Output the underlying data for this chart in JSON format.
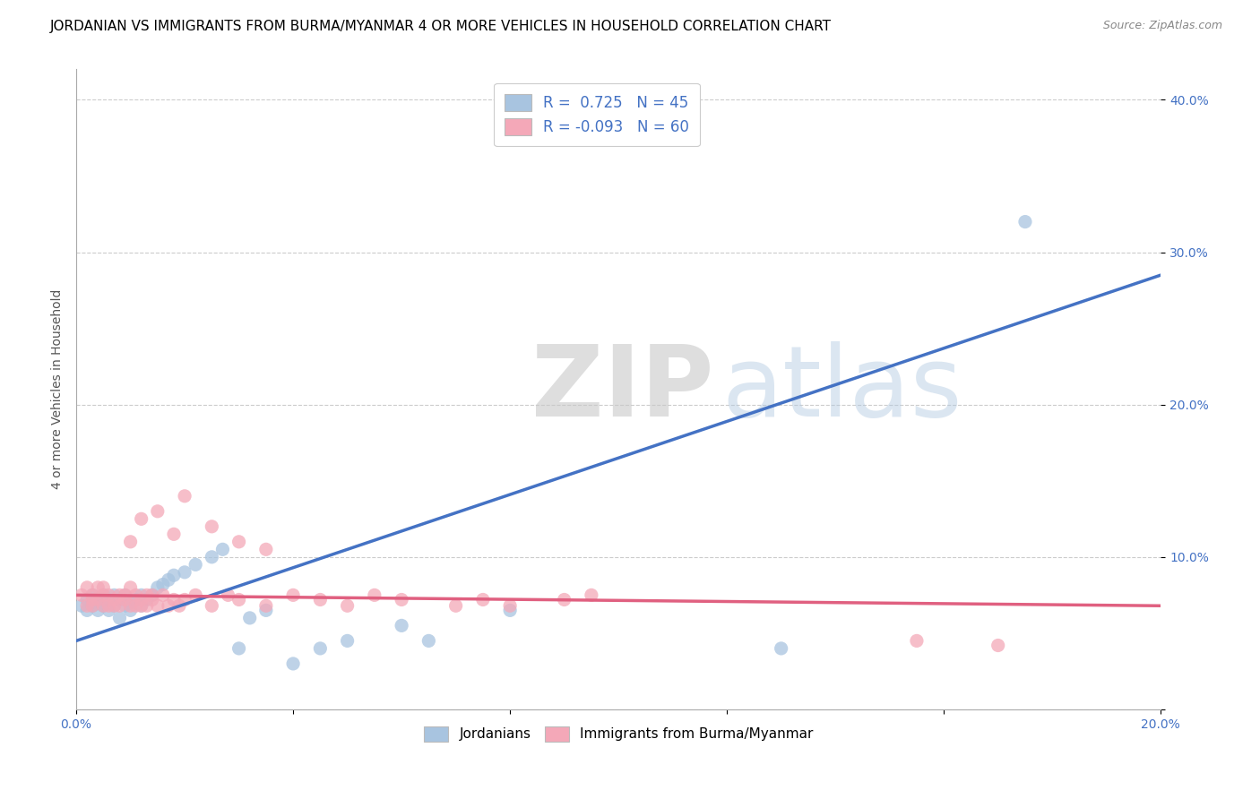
{
  "title": "JORDANIAN VS IMMIGRANTS FROM BURMA/MYANMAR 4 OR MORE VEHICLES IN HOUSEHOLD CORRELATION CHART",
  "source": "Source: ZipAtlas.com",
  "ylabel": "4 or more Vehicles in Household",
  "xlim": [
    0.0,
    0.2
  ],
  "ylim": [
    0.0,
    0.42
  ],
  "xtick_positions": [
    0.0,
    0.04,
    0.08,
    0.12,
    0.16,
    0.2
  ],
  "xtick_labels": [
    "0.0%",
    "",
    "",
    "",
    "",
    "20.0%"
  ],
  "ytick_positions": [
    0.0,
    0.1,
    0.2,
    0.3,
    0.4
  ],
  "ytick_labels": [
    "",
    "10.0%",
    "20.0%",
    "30.0%",
    "40.0%"
  ],
  "blue_R": 0.725,
  "blue_N": 45,
  "pink_R": -0.093,
  "pink_N": 60,
  "blue_color": "#a8c4e0",
  "pink_color": "#f4a8b8",
  "blue_line_color": "#4472c4",
  "pink_line_color": "#e06080",
  "legend_label_blue": "Jordanians",
  "legend_label_pink": "Immigrants from Burma/Myanmar",
  "blue_scatter_x": [
    0.001,
    0.002,
    0.002,
    0.003,
    0.003,
    0.003,
    0.004,
    0.004,
    0.005,
    0.005,
    0.005,
    0.006,
    0.006,
    0.007,
    0.007,
    0.008,
    0.008,
    0.009,
    0.009,
    0.01,
    0.01,
    0.011,
    0.012,
    0.012,
    0.013,
    0.014,
    0.015,
    0.016,
    0.017,
    0.018,
    0.02,
    0.022,
    0.025,
    0.027,
    0.03,
    0.032,
    0.035,
    0.04,
    0.045,
    0.05,
    0.06,
    0.065,
    0.08,
    0.13,
    0.175
  ],
  "blue_scatter_y": [
    0.068,
    0.072,
    0.065,
    0.07,
    0.075,
    0.068,
    0.072,
    0.065,
    0.075,
    0.07,
    0.068,
    0.072,
    0.065,
    0.075,
    0.068,
    0.072,
    0.06,
    0.068,
    0.075,
    0.07,
    0.065,
    0.072,
    0.075,
    0.068,
    0.072,
    0.075,
    0.08,
    0.082,
    0.085,
    0.088,
    0.09,
    0.095,
    0.1,
    0.105,
    0.04,
    0.06,
    0.065,
    0.03,
    0.04,
    0.045,
    0.055,
    0.045,
    0.065,
    0.04,
    0.32
  ],
  "pink_scatter_x": [
    0.001,
    0.002,
    0.002,
    0.003,
    0.003,
    0.003,
    0.004,
    0.004,
    0.005,
    0.005,
    0.005,
    0.006,
    0.006,
    0.007,
    0.007,
    0.008,
    0.008,
    0.009,
    0.009,
    0.01,
    0.01,
    0.011,
    0.011,
    0.012,
    0.012,
    0.013,
    0.013,
    0.014,
    0.014,
    0.015,
    0.016,
    0.017,
    0.018,
    0.019,
    0.02,
    0.022,
    0.025,
    0.028,
    0.03,
    0.035,
    0.04,
    0.045,
    0.05,
    0.055,
    0.06,
    0.07,
    0.075,
    0.08,
    0.09,
    0.095,
    0.01,
    0.012,
    0.015,
    0.018,
    0.02,
    0.025,
    0.03,
    0.035,
    0.155,
    0.17
  ],
  "pink_scatter_y": [
    0.075,
    0.08,
    0.068,
    0.072,
    0.075,
    0.068,
    0.08,
    0.072,
    0.075,
    0.068,
    0.08,
    0.075,
    0.068,
    0.072,
    0.068,
    0.075,
    0.068,
    0.072,
    0.075,
    0.068,
    0.08,
    0.075,
    0.068,
    0.072,
    0.068,
    0.075,
    0.068,
    0.072,
    0.075,
    0.068,
    0.075,
    0.068,
    0.072,
    0.068,
    0.072,
    0.075,
    0.068,
    0.075,
    0.072,
    0.068,
    0.075,
    0.072,
    0.068,
    0.075,
    0.072,
    0.068,
    0.072,
    0.068,
    0.072,
    0.075,
    0.11,
    0.125,
    0.13,
    0.115,
    0.14,
    0.12,
    0.11,
    0.105,
    0.045,
    0.042
  ],
  "blue_line_x": [
    0.0,
    0.2
  ],
  "blue_line_y": [
    0.045,
    0.285
  ],
  "pink_line_x": [
    0.0,
    0.2
  ],
  "pink_line_y": [
    0.075,
    0.068
  ],
  "background_color": "#ffffff",
  "grid_color": "#cccccc",
  "title_fontsize": 11,
  "axis_label_fontsize": 10,
  "tick_fontsize": 10
}
